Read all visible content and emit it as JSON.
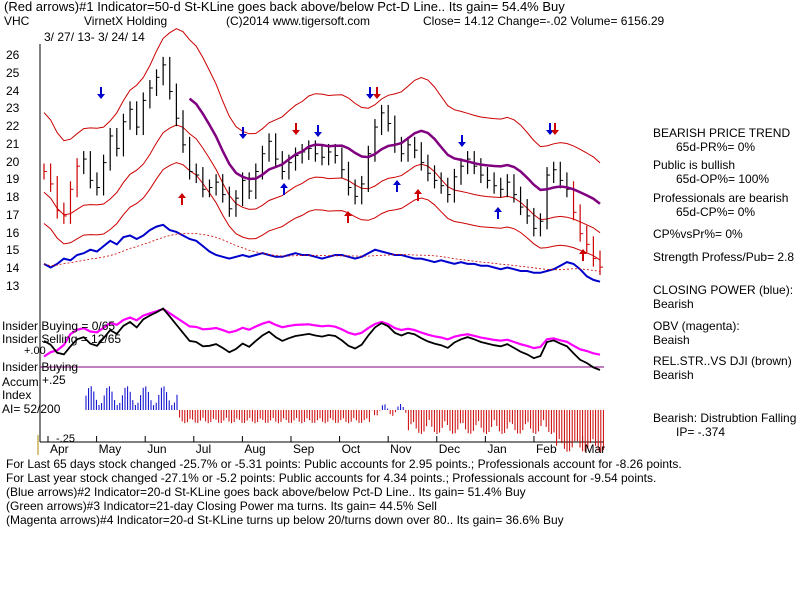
{
  "header": {
    "line1": "(Red arrows)#1 Indicator=50-d St-KLine goes back above/below Pct-D Line.. Its gain= 54.4% Buy",
    "ticker": "VHC",
    "company": "VirnetX Holding",
    "copyright": "(C)2014 www.tigersoft.com",
    "close_line": "Close=  14.12  Change=-.02 Volume= 6156.29",
    "date_range": "3/ 27/ 13- 3/ 24/ 14"
  },
  "left_labels": {
    "insider_buying": "Insider Buying = 0/65",
    "insider_selling": "Insider Selling = 12/65",
    "insider_buying2": "Insider Buying",
    "accum": "Accum",
    "accum_val": "+.25",
    "index": "Index",
    "ai": "AI= 52/200",
    "ai_neg": "-.25",
    "obv_zero": "+.00"
  },
  "right_panel": {
    "trend_title": "BEARISH PRICE TREND",
    "pr": "65d-PR%= 0%",
    "public": "Public is bullish",
    "op": "65d-OP%= 100%",
    "pros": "Professionals are bearish",
    "cp": "65d-CP%= 0%",
    "cpvspr": "CP%vsPr%=  0%",
    "strength": "Strength Profess/Pub= 2.8",
    "closing_power": "CLOSING POWER (blue):",
    "cp_state": "Bearish",
    "obv": "OBV (magenta):",
    "obv_state": "Beaish",
    "relstr": "REL.STR..VS DJI (brown)",
    "relstr_state": "Bearish",
    "dist": "Bearish:  Distrubtion Falling",
    "ip": "IP= -.374"
  },
  "footer": {
    "l1": "For Last 65 days stock changed -25.7% or -5.31 points:  Public accounts for  2.95 points.;  Professionals account for -8.26 points.",
    "l2": "For Last year stock changed -27.1% or -5.2 points:  Public accounts for  4.34 points.;  Professionals account for -9.54 points.",
    "l3": "(Blue arrows)#2 Indicator=20-d St-KLine goes back above/below Pct-D Line.. Its gain= 51.4% Buy",
    "l4": "(Green arrows)#3 Indicator=21-day Closing Power ma turns. Its gain= 44.5% Sell",
    "l5": "(Magenta arrows)#4 Indicator=20-d St-KLine turns up below 20/turns down over 80.. Its gain= 36.6% Buy"
  },
  "chart_data": {
    "type": "line",
    "y_ticks": [
      "26",
      "25",
      "24",
      "23",
      "22",
      "21",
      "20",
      "19",
      "18",
      "17",
      "16",
      "15",
      "14",
      "13"
    ],
    "x_ticks": [
      "Apr",
      "May",
      "Jun",
      "Jul",
      "Aug",
      "Sep",
      "Oct",
      "Nov",
      "Dec",
      "Jan",
      "Feb",
      "Mar"
    ],
    "price_ylim": [
      13,
      26
    ],
    "price_close": [
      19.5,
      18.8,
      17.3,
      17.0,
      18.5,
      19.8,
      20.2,
      19.0,
      18.6,
      20.0,
      21.5,
      20.8,
      22.3,
      23.0,
      22.0,
      23.5,
      24.2,
      24.8,
      25.5,
      24.0,
      22.5,
      21.0,
      19.5,
      19.3,
      18.5,
      18.6,
      18.9,
      18.2,
      17.4,
      18.0,
      19.0,
      18.4,
      19.5,
      20.5,
      21.2,
      20.2,
      19.5,
      20.0,
      20.4,
      20.6,
      20.8,
      20.5,
      20.3,
      20.6,
      20.4,
      19.6,
      18.6,
      18.1,
      18.8,
      20.5,
      22.0,
      22.8,
      22.2,
      21.0,
      20.5,
      21.0,
      20.7,
      20.0,
      19.4,
      19.0,
      18.7,
      18.2,
      19.2,
      19.8,
      20.2,
      19.8,
      19.3,
      19.0,
      18.7,
      18.5,
      18.9,
      18.2,
      17.5,
      17.0,
      16.3,
      16.7,
      19.3,
      19.6,
      19.0,
      18.5,
      17.2,
      16.0,
      15.4,
      14.6,
      14.12
    ],
    "closing_power_blue": [
      14.3,
      14.1,
      14.3,
      14.6,
      14.5,
      14.8,
      14.9,
      15.1,
      15.0,
      15.3,
      15.6,
      15.4,
      15.8,
      15.9,
      15.7,
      15.9,
      16.2,
      16.4,
      16.5,
      16.2,
      16.1,
      15.9,
      15.7,
      15.6,
      15.3,
      15.0,
      14.8,
      14.7,
      14.6,
      14.7,
      14.8,
      14.7,
      14.8,
      14.9,
      14.8,
      14.7,
      14.7,
      14.8,
      14.9,
      14.8,
      14.8,
      14.7,
      14.6,
      14.7,
      14.8,
      14.8,
      14.7,
      14.6,
      14.7,
      14.9,
      15.1,
      15.0,
      14.9,
      14.8,
      14.8,
      14.7,
      14.6,
      14.6,
      14.5,
      14.4,
      14.5,
      14.4,
      14.3,
      14.4,
      14.3,
      14.3,
      14.2,
      14.2,
      14.1,
      14.0,
      14.1,
      14.0,
      13.9,
      13.9,
      13.8,
      13.8,
      13.9,
      14.0,
      14.2,
      14.4,
      14.3,
      14.0,
      13.6,
      13.4,
      13.3
    ],
    "legend_arrows": {
      "red": "#cc0000",
      "blue": "#0000cc",
      "green": "#008800",
      "magenta": "#cc00cc"
    },
    "colors": {
      "price": "#000000",
      "band": "#cc0000",
      "ma": "#800080",
      "closing_power": "#0000cc",
      "obv": "#ff00ff",
      "relstr": "#000000",
      "accum_pos": "#0000cc",
      "accum_neg": "#cc0000"
    }
  }
}
